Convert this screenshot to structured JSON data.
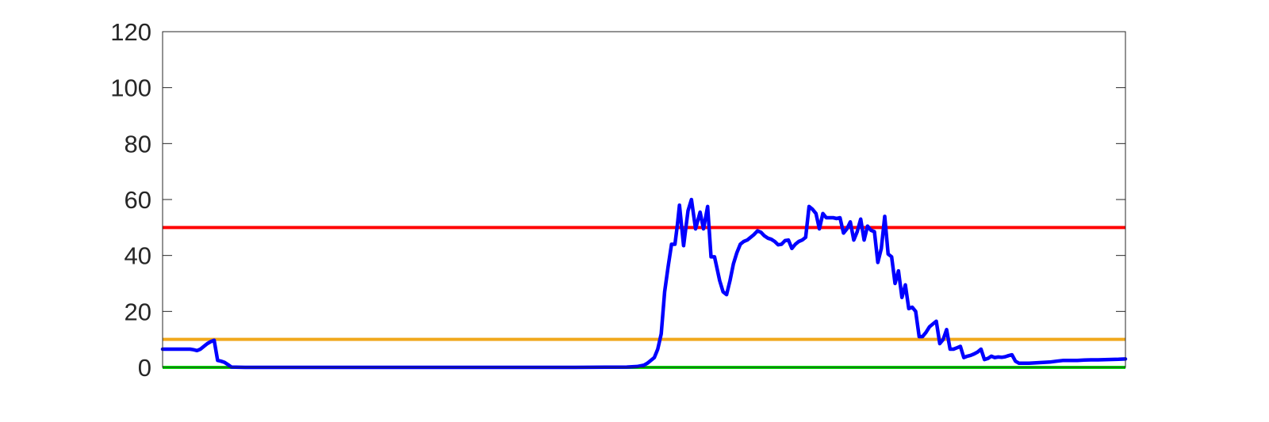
{
  "chart_data": {
    "type": "line",
    "title": "",
    "xlabel": "",
    "ylabel": "",
    "xlim": [
      0,
      280
    ],
    "ylim": [
      0,
      120
    ],
    "y_ticks": [
      0,
      20,
      40,
      60,
      80,
      100,
      120
    ],
    "y_tick_labels": [
      "0",
      "20",
      "40",
      "60",
      "80",
      "100",
      "120"
    ],
    "x_tick_labels": [],
    "grid": false,
    "legend": "none",
    "reference_lines": [
      {
        "y": 50,
        "color": "#ff0000"
      },
      {
        "y": 10,
        "color": "#f0a81c"
      },
      {
        "y": 0,
        "color": "#00e000"
      }
    ],
    "series": [
      {
        "color": "#0000ff",
        "points": [
          [
            0,
            6.5
          ],
          [
            8,
            6.5
          ],
          [
            9,
            6.3
          ],
          [
            10,
            6.0
          ],
          [
            11,
            6.5
          ],
          [
            12,
            7.5
          ],
          [
            13,
            8.5
          ],
          [
            14,
            9.2
          ],
          [
            15,
            9.7
          ],
          [
            16,
            2.5
          ],
          [
            17,
            2.2
          ],
          [
            18,
            1.8
          ],
          [
            19,
            1.0
          ],
          [
            20,
            0.1
          ],
          [
            24,
            0
          ],
          [
            40,
            0
          ],
          [
            60,
            0
          ],
          [
            80,
            0
          ],
          [
            100,
            0
          ],
          [
            120,
            0
          ],
          [
            135,
            0.1
          ],
          [
            138,
            0.3
          ],
          [
            140,
            0.8
          ],
          [
            141,
            1.5
          ],
          [
            143,
            3.5
          ],
          [
            144,
            6.5
          ],
          [
            145,
            12
          ],
          [
            146,
            27
          ],
          [
            147,
            36
          ],
          [
            148,
            44
          ],
          [
            149,
            44
          ],
          [
            149.7,
            51
          ],
          [
            150.3,
            58
          ],
          [
            151.5,
            43.5
          ],
          [
            152.8,
            56
          ],
          [
            153.8,
            60
          ],
          [
            155,
            49.5
          ],
          [
            156.3,
            55.5
          ],
          [
            157.3,
            49.5
          ],
          [
            158.5,
            57.5
          ],
          [
            159.5,
            39.5
          ],
          [
            160.5,
            39.5
          ],
          [
            162,
            31
          ],
          [
            163,
            27
          ],
          [
            164,
            26
          ],
          [
            165,
            31
          ],
          [
            166,
            37
          ],
          [
            167,
            41
          ],
          [
            168,
            44
          ],
          [
            169,
            45
          ],
          [
            170,
            45.5
          ],
          [
            171,
            46.5
          ],
          [
            172,
            47.5
          ],
          [
            173,
            48.8
          ],
          [
            174,
            48.3
          ],
          [
            175,
            47
          ],
          [
            176,
            46.2
          ],
          [
            177,
            45.8
          ],
          [
            178,
            45
          ],
          [
            179,
            43.8
          ],
          [
            180,
            44
          ],
          [
            181,
            45.3
          ],
          [
            182,
            45.5
          ],
          [
            183,
            42.5
          ],
          [
            184,
            44
          ],
          [
            185,
            45
          ],
          [
            186,
            45.5
          ],
          [
            187,
            46.5
          ],
          [
            188,
            57.5
          ],
          [
            189,
            56.5
          ],
          [
            190,
            55
          ],
          [
            191,
            49.5
          ],
          [
            192,
            55
          ],
          [
            193,
            53.5
          ],
          [
            194,
            53.5
          ],
          [
            195,
            53.5
          ],
          [
            196,
            53.2
          ],
          [
            197,
            53.5
          ],
          [
            198,
            48
          ],
          [
            199,
            49.5
          ],
          [
            200,
            52
          ],
          [
            201,
            45.5
          ],
          [
            202,
            48.5
          ],
          [
            203,
            53
          ],
          [
            204,
            45.5
          ],
          [
            205,
            50.5
          ],
          [
            206,
            49
          ],
          [
            207,
            48.5
          ],
          [
            208,
            37.5
          ],
          [
            209,
            42.5
          ],
          [
            210,
            54
          ],
          [
            211,
            40.5
          ],
          [
            212,
            39.5
          ],
          [
            213,
            30
          ],
          [
            214,
            34.5
          ],
          [
            215,
            25
          ],
          [
            216,
            29.5
          ],
          [
            217,
            21
          ],
          [
            218,
            21.5
          ],
          [
            219,
            20
          ],
          [
            220,
            11
          ],
          [
            221,
            11
          ],
          [
            222,
            12.5
          ],
          [
            223,
            14.5
          ],
          [
            224,
            15.5
          ],
          [
            225,
            16.5
          ],
          [
            226,
            8.5
          ],
          [
            227,
            10
          ],
          [
            228,
            13.5
          ],
          [
            229,
            6.5
          ],
          [
            230,
            6.5
          ],
          [
            231,
            7
          ],
          [
            232,
            7.5
          ],
          [
            233,
            3.5
          ],
          [
            234,
            4
          ],
          [
            235,
            4.3
          ],
          [
            236,
            4.8
          ],
          [
            237,
            5.5
          ],
          [
            238,
            6.5
          ],
          [
            239,
            2.8
          ],
          [
            240,
            3.2
          ],
          [
            241,
            4.0
          ],
          [
            242,
            3.5
          ],
          [
            243,
            3.7
          ],
          [
            244,
            3.6
          ],
          [
            245,
            3.8
          ],
          [
            246,
            4.2
          ],
          [
            247,
            4.5
          ],
          [
            248,
            2.2
          ],
          [
            249,
            1.5
          ],
          [
            252,
            1.5
          ],
          [
            255,
            1.7
          ],
          [
            258,
            1.9
          ],
          [
            260,
            2.2
          ],
          [
            262,
            2.5
          ],
          [
            264,
            2.5
          ],
          [
            266,
            2.5
          ],
          [
            268,
            2.6
          ],
          [
            270,
            2.7
          ],
          [
            272,
            2.7
          ],
          [
            275,
            2.8
          ],
          [
            278,
            2.9
          ],
          [
            280,
            3.0
          ]
        ]
      }
    ]
  }
}
